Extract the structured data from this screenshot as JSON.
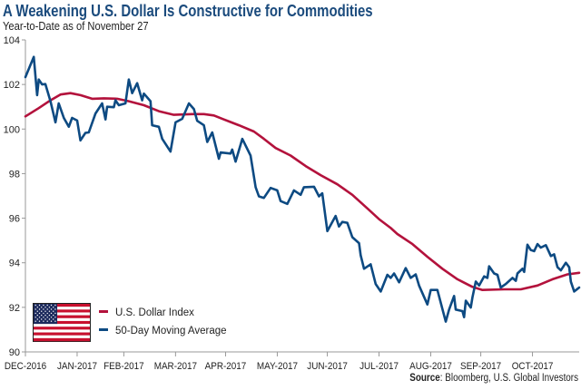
{
  "chart_data": {
    "type": "line",
    "title": "A Weakening U.S. Dollar Is Constructive for Commodities",
    "subtitle": "Year-to-Date as of November 27",
    "source_label": "Source",
    "source_text": ": Bloomberg, U.S. Global Investors",
    "xlabel": "",
    "ylabel": "",
    "ylim": [
      90,
      104
    ],
    "yticks": [
      90,
      92,
      94,
      96,
      98,
      100,
      102,
      104
    ],
    "xlim": [
      "2016-12-31",
      "2017-11-28"
    ],
    "xticks": [
      {
        "date": "2016-12-31",
        "label": "DEC-2016"
      },
      {
        "date": "2017-01-31",
        "label": "JAN-2017"
      },
      {
        "date": "2017-02-28",
        "label": "FEB-2017"
      },
      {
        "date": "2017-03-31",
        "label": "MAR-2017"
      },
      {
        "date": "2017-04-30",
        "label": "APR-2017"
      },
      {
        "date": "2017-05-31",
        "label": "MAY-2017"
      },
      {
        "date": "2017-06-30",
        "label": "JUN-2017"
      },
      {
        "date": "2017-07-31",
        "label": "JUL-2017"
      },
      {
        "date": "2017-08-31",
        "label": "AUG-2017"
      },
      {
        "date": "2017-09-30",
        "label": "SEP-2017"
      },
      {
        "date": "2017-10-31",
        "label": "OCT-2017"
      }
    ],
    "grid": false,
    "legend_position": "bottom-left",
    "legend_icon": "us-flag",
    "series": [
      {
        "name": "U.S. Dollar Index",
        "color": "#b3123c",
        "points": [
          [
            "2016-12-31",
            100.57
          ],
          [
            "2017-01-08",
            100.94
          ],
          [
            "2017-01-15",
            101.29
          ],
          [
            "2017-01-21",
            101.55
          ],
          [
            "2017-01-27",
            101.61
          ],
          [
            "2017-02-02",
            101.52
          ],
          [
            "2017-02-09",
            101.36
          ],
          [
            "2017-02-16",
            101.38
          ],
          [
            "2017-02-24",
            101.36
          ],
          [
            "2017-03-03",
            101.25
          ],
          [
            "2017-03-12",
            101.07
          ],
          [
            "2017-03-21",
            100.8
          ],
          [
            "2017-03-30",
            100.64
          ],
          [
            "2017-04-10",
            100.67
          ],
          [
            "2017-04-17",
            100.67
          ],
          [
            "2017-04-23",
            100.61
          ],
          [
            "2017-04-29",
            100.43
          ],
          [
            "2017-05-08",
            100.17
          ],
          [
            "2017-05-17",
            99.89
          ],
          [
            "2017-05-23",
            99.56
          ],
          [
            "2017-05-30",
            99.15
          ],
          [
            "2017-06-08",
            98.81
          ],
          [
            "2017-06-17",
            98.34
          ],
          [
            "2017-06-26",
            97.93
          ],
          [
            "2017-07-06",
            97.52
          ],
          [
            "2017-07-15",
            97.05
          ],
          [
            "2017-07-24",
            96.44
          ],
          [
            "2017-07-31",
            95.96
          ],
          [
            "2017-08-07",
            95.56
          ],
          [
            "2017-08-11",
            95.29
          ],
          [
            "2017-08-20",
            94.84
          ],
          [
            "2017-08-29",
            94.27
          ],
          [
            "2017-09-07",
            93.73
          ],
          [
            "2017-09-16",
            93.26
          ],
          [
            "2017-09-25",
            92.92
          ],
          [
            "2017-10-01",
            92.78
          ],
          [
            "2017-10-14",
            92.81
          ],
          [
            "2017-10-24",
            92.81
          ],
          [
            "2017-11-03",
            92.98
          ],
          [
            "2017-11-12",
            93.26
          ],
          [
            "2017-11-21",
            93.48
          ],
          [
            "2017-11-28",
            93.55
          ]
        ]
      },
      {
        "name": "50-Day Moving Average",
        "color": "#0d4a82",
        "points": [
          [
            "2016-12-31",
            102.33
          ],
          [
            "2017-01-05",
            103.24
          ],
          [
            "2017-01-07",
            101.52
          ],
          [
            "2017-01-08",
            102.22
          ],
          [
            "2017-01-10",
            102.0
          ],
          [
            "2017-01-12",
            102.02
          ],
          [
            "2017-01-15",
            101.25
          ],
          [
            "2017-01-18",
            100.3
          ],
          [
            "2017-01-20",
            101.15
          ],
          [
            "2017-01-23",
            100.5
          ],
          [
            "2017-01-26",
            100.1
          ],
          [
            "2017-01-28",
            100.5
          ],
          [
            "2017-01-31",
            100.38
          ],
          [
            "2017-02-02",
            99.49
          ],
          [
            "2017-02-05",
            99.83
          ],
          [
            "2017-02-07",
            99.85
          ],
          [
            "2017-02-11",
            100.7
          ],
          [
            "2017-02-15",
            101.15
          ],
          [
            "2017-02-17",
            100.43
          ],
          [
            "2017-02-18",
            101.0
          ],
          [
            "2017-02-22",
            100.98
          ],
          [
            "2017-02-23",
            101.29
          ],
          [
            "2017-02-25",
            101.07
          ],
          [
            "2017-03-01",
            101.15
          ],
          [
            "2017-03-03",
            102.22
          ],
          [
            "2017-03-05",
            101.61
          ],
          [
            "2017-03-08",
            102.06
          ],
          [
            "2017-03-11",
            101.29
          ],
          [
            "2017-03-12",
            101.59
          ],
          [
            "2017-03-16",
            101.25
          ],
          [
            "2017-03-17",
            100.17
          ],
          [
            "2017-03-21",
            100.1
          ],
          [
            "2017-03-23",
            99.56
          ],
          [
            "2017-03-28",
            98.99
          ],
          [
            "2017-03-31",
            100.3
          ],
          [
            "2017-04-04",
            100.46
          ],
          [
            "2017-04-08",
            101.15
          ],
          [
            "2017-04-11",
            100.9
          ],
          [
            "2017-04-13",
            100.37
          ],
          [
            "2017-04-17",
            100.17
          ],
          [
            "2017-04-19",
            99.42
          ],
          [
            "2017-04-22",
            99.85
          ],
          [
            "2017-04-26",
            98.67
          ],
          [
            "2017-04-27",
            98.95
          ],
          [
            "2017-05-03",
            98.9
          ],
          [
            "2017-05-04",
            99.08
          ],
          [
            "2017-05-06",
            98.54
          ],
          [
            "2017-05-10",
            99.56
          ],
          [
            "2017-05-15",
            98.81
          ],
          [
            "2017-05-18",
            97.39
          ],
          [
            "2017-05-20",
            96.98
          ],
          [
            "2017-05-23",
            96.91
          ],
          [
            "2017-05-27",
            97.36
          ],
          [
            "2017-05-31",
            97.25
          ],
          [
            "2017-06-02",
            96.77
          ],
          [
            "2017-06-06",
            96.64
          ],
          [
            "2017-06-10",
            97.25
          ],
          [
            "2017-06-14",
            97.05
          ],
          [
            "2017-06-16",
            97.39
          ],
          [
            "2017-06-22",
            97.41
          ],
          [
            "2017-06-25",
            96.98
          ],
          [
            "2017-06-27",
            97.12
          ],
          [
            "2017-06-30",
            95.42
          ],
          [
            "2017-07-05",
            96.1
          ],
          [
            "2017-07-07",
            95.63
          ],
          [
            "2017-07-09",
            95.83
          ],
          [
            "2017-07-12",
            95.79
          ],
          [
            "2017-07-15",
            95.15
          ],
          [
            "2017-07-19",
            94.88
          ],
          [
            "2017-07-20",
            94.34
          ],
          [
            "2017-07-22",
            93.73
          ],
          [
            "2017-07-26",
            93.93
          ],
          [
            "2017-07-29",
            93.05
          ],
          [
            "2017-08-01",
            92.71
          ],
          [
            "2017-08-05",
            93.46
          ],
          [
            "2017-08-07",
            93.32
          ],
          [
            "2017-08-09",
            93.52
          ],
          [
            "2017-08-12",
            93.12
          ],
          [
            "2017-08-16",
            93.76
          ],
          [
            "2017-08-19",
            93.32
          ],
          [
            "2017-08-22",
            93.48
          ],
          [
            "2017-08-24",
            92.98
          ],
          [
            "2017-08-29",
            92.13
          ],
          [
            "2017-08-31",
            92.78
          ],
          [
            "2017-09-04",
            92.78
          ],
          [
            "2017-09-09",
            91.36
          ],
          [
            "2017-09-11",
            91.9
          ],
          [
            "2017-09-14",
            92.51
          ],
          [
            "2017-09-15",
            91.9
          ],
          [
            "2017-09-19",
            91.83
          ],
          [
            "2017-09-20",
            91.56
          ],
          [
            "2017-09-21",
            92.3
          ],
          [
            "2017-09-24",
            91.99
          ],
          [
            "2017-09-25",
            92.44
          ],
          [
            "2017-09-27",
            93.16
          ],
          [
            "2017-09-29",
            92.98
          ],
          [
            "2017-10-02",
            93.39
          ],
          [
            "2017-10-04",
            93.32
          ],
          [
            "2017-10-05",
            93.84
          ],
          [
            "2017-10-08",
            93.52
          ],
          [
            "2017-10-10",
            93.46
          ],
          [
            "2017-10-12",
            92.89
          ],
          [
            "2017-10-15",
            93.05
          ],
          [
            "2017-10-19",
            93.32
          ],
          [
            "2017-10-21",
            93.19
          ],
          [
            "2017-10-22",
            93.52
          ],
          [
            "2017-10-25",
            93.73
          ],
          [
            "2017-10-26",
            93.59
          ],
          [
            "2017-10-28",
            94.81
          ],
          [
            "2017-10-30",
            94.57
          ],
          [
            "2017-11-01",
            94.52
          ],
          [
            "2017-11-03",
            94.84
          ],
          [
            "2017-11-05",
            94.68
          ],
          [
            "2017-11-08",
            94.79
          ],
          [
            "2017-11-11",
            94.3
          ],
          [
            "2017-11-13",
            94.38
          ],
          [
            "2017-11-15",
            93.8
          ],
          [
            "2017-11-17",
            93.66
          ],
          [
            "2017-11-20",
            94.0
          ],
          [
            "2017-11-22",
            93.8
          ],
          [
            "2017-11-23",
            93.16
          ],
          [
            "2017-11-25",
            92.71
          ],
          [
            "2017-11-28",
            92.89
          ]
        ]
      }
    ]
  }
}
